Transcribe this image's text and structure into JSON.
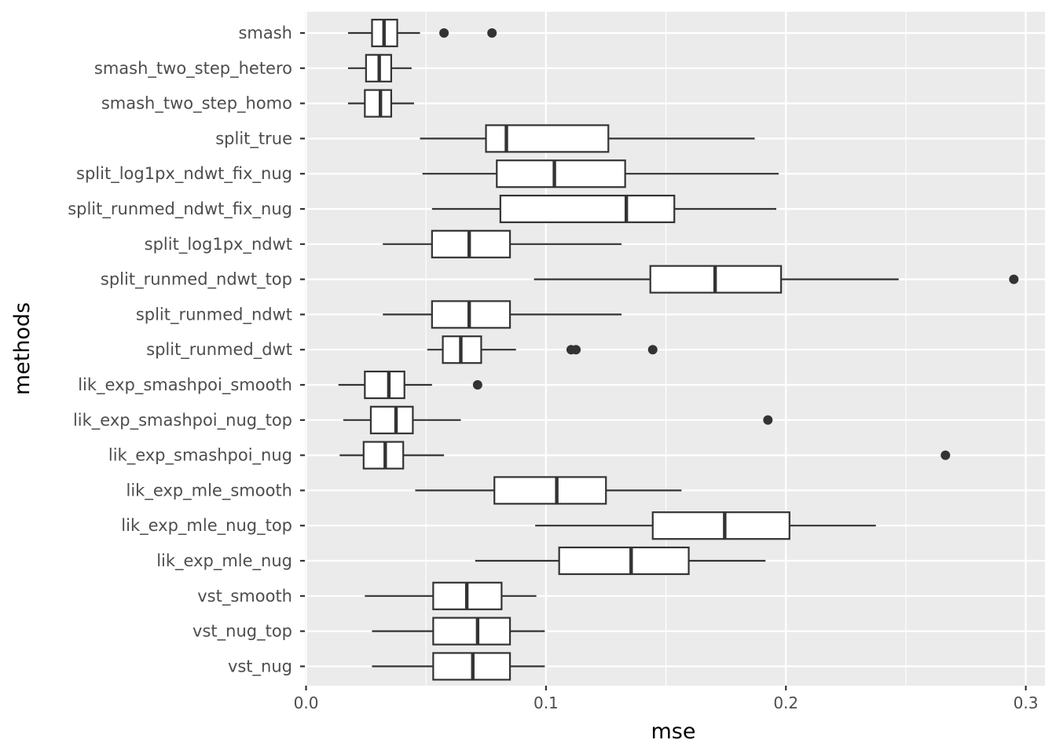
{
  "chart_data": {
    "type": "boxplot",
    "orientation": "horizontal",
    "xlabel": "mse",
    "ylabel": "methods",
    "xlim": [
      -0.0005,
      0.308
    ],
    "xticks": [
      0.0,
      0.1,
      0.2,
      0.3
    ],
    "xtick_labels": [
      "0.0",
      "0.1",
      "0.2",
      "0.3"
    ],
    "minor_xticks": [
      0.05,
      0.15,
      0.25
    ],
    "grid": true,
    "colors": {
      "panel": "#ebebeb",
      "grid": "#ffffff",
      "box_fill": "#ffffff",
      "stroke": "#333333",
      "tick_text": "#4d4d4d",
      "title_text": "#000000"
    },
    "categories": [
      "smash",
      "smash_two_step_hetero",
      "smash_two_step_homo",
      "split_true",
      "split_log1px_ndwt_fix_nug",
      "split_runmed_ndwt_fix_nug",
      "split_log1px_ndwt",
      "split_runmed_ndwt_top",
      "split_runmed_ndwt",
      "split_runmed_dwt",
      "lik_exp_smashpoi_smooth",
      "lik_exp_smashpoi_nug_top",
      "lik_exp_smashpoi_nug",
      "lik_exp_mle_smooth",
      "lik_exp_mle_nug_top",
      "lik_exp_mle_nug",
      "vst_smooth",
      "vst_nug_top",
      "vst_nug"
    ],
    "series": [
      {
        "name": "smash",
        "whisker_low": 0.0175,
        "q1": 0.0275,
        "median": 0.0325,
        "q3": 0.038,
        "whisker_high": 0.0475,
        "outliers": [
          0.0575,
          0.0775
        ]
      },
      {
        "name": "smash_two_step_hetero",
        "whisker_low": 0.0175,
        "q1": 0.025,
        "median": 0.0305,
        "q3": 0.0355,
        "whisker_high": 0.044,
        "outliers": []
      },
      {
        "name": "smash_two_step_homo",
        "whisker_low": 0.0175,
        "q1": 0.0245,
        "median": 0.031,
        "q3": 0.0355,
        "whisker_high": 0.045,
        "outliers": []
      },
      {
        "name": "split_true",
        "whisker_low": 0.0475,
        "q1": 0.075,
        "median": 0.0835,
        "q3": 0.126,
        "whisker_high": 0.187,
        "outliers": []
      },
      {
        "name": "split_log1px_ndwt_fix_nug",
        "whisker_low": 0.0485,
        "q1": 0.0795,
        "median": 0.1035,
        "q3": 0.133,
        "whisker_high": 0.197,
        "outliers": []
      },
      {
        "name": "split_runmed_ndwt_fix_nug",
        "whisker_low": 0.0525,
        "q1": 0.081,
        "median": 0.1335,
        "q3": 0.1535,
        "whisker_high": 0.196,
        "outliers": []
      },
      {
        "name": "split_log1px_ndwt",
        "whisker_low": 0.032,
        "q1": 0.0525,
        "median": 0.068,
        "q3": 0.085,
        "whisker_high": 0.1315,
        "outliers": []
      },
      {
        "name": "split_runmed_ndwt_top",
        "whisker_low": 0.095,
        "q1": 0.1435,
        "median": 0.1705,
        "q3": 0.198,
        "whisker_high": 0.247,
        "outliers": [
          0.295
        ]
      },
      {
        "name": "split_runmed_ndwt",
        "whisker_low": 0.032,
        "q1": 0.0525,
        "median": 0.068,
        "q3": 0.085,
        "whisker_high": 0.1315,
        "outliers": []
      },
      {
        "name": "split_runmed_dwt",
        "whisker_low": 0.0505,
        "q1": 0.057,
        "median": 0.0645,
        "q3": 0.073,
        "whisker_high": 0.0875,
        "outliers": [
          0.1105,
          0.1125,
          0.1445
        ]
      },
      {
        "name": "lik_exp_smashpoi_smooth",
        "whisker_low": 0.0135,
        "q1": 0.0245,
        "median": 0.0345,
        "q3": 0.041,
        "whisker_high": 0.0525,
        "outliers": [
          0.0715
        ]
      },
      {
        "name": "lik_exp_smashpoi_nug_top",
        "whisker_low": 0.0155,
        "q1": 0.027,
        "median": 0.0375,
        "q3": 0.0445,
        "whisker_high": 0.0645,
        "outliers": [
          0.1925
        ]
      },
      {
        "name": "lik_exp_smashpoi_nug",
        "whisker_low": 0.014,
        "q1": 0.024,
        "median": 0.033,
        "q3": 0.0405,
        "whisker_high": 0.0575,
        "outliers": [
          0.2665
        ]
      },
      {
        "name": "lik_exp_mle_smooth",
        "whisker_low": 0.0455,
        "q1": 0.0785,
        "median": 0.1045,
        "q3": 0.125,
        "whisker_high": 0.1565,
        "outliers": []
      },
      {
        "name": "lik_exp_mle_nug_top",
        "whisker_low": 0.0955,
        "q1": 0.1445,
        "median": 0.1745,
        "q3": 0.2015,
        "whisker_high": 0.2375,
        "outliers": []
      },
      {
        "name": "lik_exp_mle_nug",
        "whisker_low": 0.0705,
        "q1": 0.1055,
        "median": 0.1355,
        "q3": 0.1595,
        "whisker_high": 0.1915,
        "outliers": []
      },
      {
        "name": "vst_smooth",
        "whisker_low": 0.0245,
        "q1": 0.053,
        "median": 0.067,
        "q3": 0.0815,
        "whisker_high": 0.096,
        "outliers": []
      },
      {
        "name": "vst_nug_top",
        "whisker_low": 0.0275,
        "q1": 0.053,
        "median": 0.0715,
        "q3": 0.085,
        "whisker_high": 0.0995,
        "outliers": []
      },
      {
        "name": "vst_nug",
        "whisker_low": 0.0275,
        "q1": 0.053,
        "median": 0.0695,
        "q3": 0.085,
        "whisker_high": 0.0995,
        "outliers": []
      }
    ]
  }
}
